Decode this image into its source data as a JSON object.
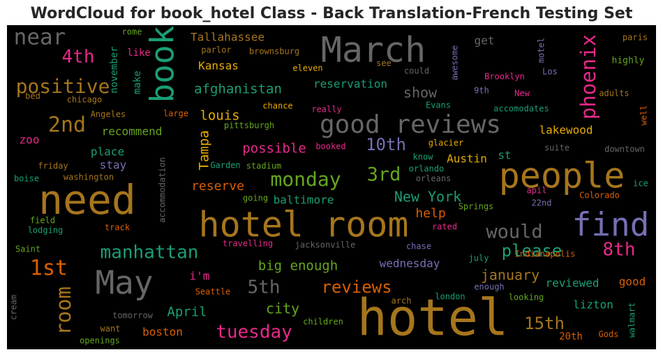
{
  "chart_data": {
    "type": "wordcloud",
    "title": "WordCloud for book_hotel Class - Back Translation-French Testing Set",
    "words": [
      {
        "text": "hotel",
        "color": "#a6761d"
      },
      {
        "text": "need",
        "color": "#a6761d"
      },
      {
        "text": "March",
        "color": "#666666"
      },
      {
        "text": "people",
        "color": "#a6761d"
      },
      {
        "text": "hotel room",
        "color": "#a6761d"
      },
      {
        "text": "find",
        "color": "#7570b3"
      },
      {
        "text": "May",
        "color": "#666666"
      },
      {
        "text": "book",
        "color": "#1b9e77"
      },
      {
        "text": "good reviews",
        "color": "#666666"
      },
      {
        "text": "near",
        "color": "#666666"
      },
      {
        "text": "positive",
        "color": "#a6761d"
      },
      {
        "text": "phoenix",
        "color": "#e7298a"
      },
      {
        "text": "2nd",
        "color": "#a6761d"
      },
      {
        "text": "4th",
        "color": "#e7298a"
      },
      {
        "text": "1st",
        "color": "#d95f02"
      },
      {
        "text": "room",
        "color": "#a6761d"
      },
      {
        "text": "manhattan",
        "color": "#1b9e77"
      },
      {
        "text": "monday",
        "color": "#66a61e"
      },
      {
        "text": "3rd",
        "color": "#66a61e"
      },
      {
        "text": "10th",
        "color": "#7570b3"
      },
      {
        "text": "would",
        "color": "#666666"
      },
      {
        "text": "8th",
        "color": "#e7298a"
      },
      {
        "text": "please",
        "color": "#1b9e77"
      },
      {
        "text": "New York",
        "color": "#1b9e77"
      },
      {
        "text": "reviews",
        "color": "#d95f02"
      },
      {
        "text": "5th",
        "color": "#666666"
      },
      {
        "text": "tuesday",
        "color": "#e7298a"
      },
      {
        "text": "15th",
        "color": "#a6761d"
      },
      {
        "text": "january",
        "color": "#a6761d"
      },
      {
        "text": "April",
        "color": "#1b9e77"
      },
      {
        "text": "city",
        "color": "#66a61e"
      },
      {
        "text": "big enough",
        "color": "#66a61e"
      },
      {
        "text": "afghanistan",
        "color": "#1b9e77"
      },
      {
        "text": "louis",
        "color": "#e6ab02"
      },
      {
        "text": "possible",
        "color": "#e7298a"
      },
      {
        "text": "reserve",
        "color": "#d95f02"
      },
      {
        "text": "Tampa",
        "color": "#e6ab02"
      },
      {
        "text": "show",
        "color": "#666666"
      },
      {
        "text": "help",
        "color": "#d95f02"
      },
      {
        "text": "baltimore",
        "color": "#1b9e77"
      },
      {
        "text": "Austin",
        "color": "#e6ab02"
      },
      {
        "text": "reviewed",
        "color": "#1b9e77"
      },
      {
        "text": "good",
        "color": "#d95f02"
      },
      {
        "text": "lizton",
        "color": "#1b9e77"
      },
      {
        "text": "20th",
        "color": "#d95f02"
      },
      {
        "text": "wednesday",
        "color": "#7570b3"
      },
      {
        "text": "boston",
        "color": "#d95f02"
      },
      {
        "text": "i'm",
        "color": "#e7298a"
      },
      {
        "text": "Seattle",
        "color": "#d95f02"
      },
      {
        "text": "Kansas",
        "color": "#e6ab02"
      },
      {
        "text": "Tallahassee",
        "color": "#a6761d"
      },
      {
        "text": "reservation",
        "color": "#1b9e77"
      },
      {
        "text": "recommend",
        "color": "#66a61e"
      },
      {
        "text": "place",
        "color": "#1b9e77"
      },
      {
        "text": "stay",
        "color": "#7570b3"
      },
      {
        "text": "zoo",
        "color": "#e7298a"
      },
      {
        "text": "lakewood",
        "color": "#e6ab02"
      },
      {
        "text": "get",
        "color": "#666666"
      },
      {
        "text": "st",
        "color": "#1b9e77"
      },
      {
        "text": "november",
        "color": "#1b9e77"
      },
      {
        "text": "make",
        "color": "#1b9e77"
      },
      {
        "text": "like",
        "color": "#e7298a"
      },
      {
        "text": "rome",
        "color": "#66a61e"
      },
      {
        "text": "parlor",
        "color": "#a6761d"
      },
      {
        "text": "brownsburg",
        "color": "#a6761d"
      },
      {
        "text": "eleven",
        "color": "#e6ab02"
      },
      {
        "text": "see",
        "color": "#a6761d"
      },
      {
        "text": "could",
        "color": "#666666"
      },
      {
        "text": "awesome",
        "color": "#7570b3"
      },
      {
        "text": "motel",
        "color": "#7570b3"
      },
      {
        "text": "paris",
        "color": "#a6761d"
      },
      {
        "text": "highly",
        "color": "#66a61e"
      },
      {
        "text": "Brooklyn",
        "color": "#e7298a"
      },
      {
        "text": "Los",
        "color": "#7570b3"
      },
      {
        "text": "9th",
        "color": "#7570b3"
      },
      {
        "text": "New",
        "color": "#e7298a"
      },
      {
        "text": "adults",
        "color": "#a6761d"
      },
      {
        "text": "well",
        "color": "#d95f02"
      },
      {
        "text": "bed",
        "color": "#a6761d"
      },
      {
        "text": "chicago",
        "color": "#a6761d"
      },
      {
        "text": "Angeles",
        "color": "#a6761d"
      },
      {
        "text": "large",
        "color": "#d95f02"
      },
      {
        "text": "chance",
        "color": "#e6ab02"
      },
      {
        "text": "really",
        "color": "#e7298a"
      },
      {
        "text": "Evans",
        "color": "#1b9e77"
      },
      {
        "text": "accomodates",
        "color": "#1b9e77"
      },
      {
        "text": "pittsburgh",
        "color": "#66a61e"
      },
      {
        "text": "booked",
        "color": "#e7298a"
      },
      {
        "text": "glacier",
        "color": "#e6ab02"
      },
      {
        "text": "suite",
        "color": "#666666"
      },
      {
        "text": "downtown",
        "color": "#666666"
      },
      {
        "text": "know",
        "color": "#1b9e77"
      },
      {
        "text": "friday",
        "color": "#a6761d"
      },
      {
        "text": "Garden",
        "color": "#1b9e77"
      },
      {
        "text": "stadium",
        "color": "#66a61e"
      },
      {
        "text": "orlando",
        "color": "#1b9e77"
      },
      {
        "text": "washington",
        "color": "#a6761d"
      },
      {
        "text": "boise",
        "color": "#1b9e77"
      },
      {
        "text": "accommodation",
        "color": "#666666"
      },
      {
        "text": "orleans",
        "color": "#666666"
      },
      {
        "text": "apil",
        "color": "#e7298a"
      },
      {
        "text": "ice",
        "color": "#1b9e77"
      },
      {
        "text": "Colorado",
        "color": "#d95f02"
      },
      {
        "text": "going",
        "color": "#66a61e"
      },
      {
        "text": "Springs",
        "color": "#66a61e"
      },
      {
        "text": "22nd",
        "color": "#7570b3"
      },
      {
        "text": "field",
        "color": "#66a61e"
      },
      {
        "text": "lodging",
        "color": "#1b9e77"
      },
      {
        "text": "track",
        "color": "#d95f02"
      },
      {
        "text": "rated",
        "color": "#e7298a"
      },
      {
        "text": "travelling",
        "color": "#e7298a"
      },
      {
        "text": "jacksonville",
        "color": "#666666"
      },
      {
        "text": "chase",
        "color": "#7570b3"
      },
      {
        "text": "Saint",
        "color": "#66a61e"
      },
      {
        "text": "july",
        "color": "#1b9e77"
      },
      {
        "text": "Indianapolis",
        "color": "#d95f02"
      },
      {
        "text": "enough",
        "color": "#7570b3"
      },
      {
        "text": "london",
        "color": "#1b9e77"
      },
      {
        "text": "looking",
        "color": "#66a61e"
      },
      {
        "text": "arch",
        "color": "#a6761d"
      },
      {
        "text": "cream",
        "color": "#666666"
      },
      {
        "text": "tomorrow",
        "color": "#666666"
      },
      {
        "text": "want",
        "color": "#a6761d"
      },
      {
        "text": "children",
        "color": "#66a61e"
      },
      {
        "text": "walmart",
        "color": "#1b9e77"
      },
      {
        "text": "openings",
        "color": "#66a61e"
      },
      {
        "text": "Gods",
        "color": "#d95f02"
      }
    ]
  }
}
